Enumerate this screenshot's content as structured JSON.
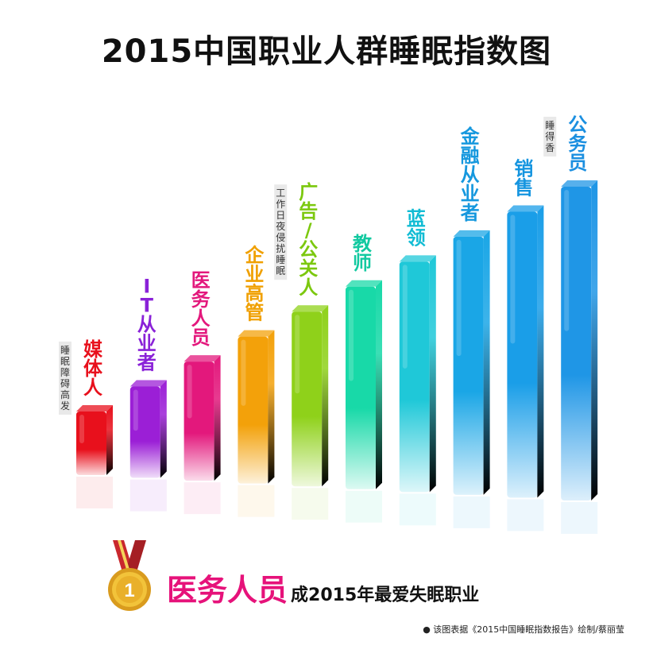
{
  "title": "2015中国职业人群睡眠指数图",
  "chart_data": {
    "type": "bar",
    "title": "2015中国职业人群睡眠指数图",
    "categories": [
      "媒体人",
      "IT从业者",
      "医务人员",
      "企业高管",
      "广告/公关人",
      "教师",
      "蓝领",
      "金融从业者",
      "销售",
      "公务员"
    ],
    "values": [
      1,
      2,
      3,
      4,
      5,
      6,
      7,
      8,
      9,
      10
    ],
    "colors": [
      "#e8101c",
      "#9b1fd6",
      "#e3187c",
      "#f3a10a",
      "#8fd11a",
      "#18d9a8",
      "#1fc8d8",
      "#1aa6e6",
      "#1a9ee8",
      "#1f96e6"
    ],
    "label_colors": [
      "#e8101c",
      "#8a22d8",
      "#e3187c",
      "#f0a000",
      "#7cc80e",
      "#12c9a0",
      "#12bcd4",
      "#1698de",
      "#1595e0",
      "#1b8fe0"
    ],
    "annotations": [
      {
        "category": "媒体人",
        "text": "睡眠障碍高发"
      },
      {
        "category": "广告/公关人",
        "text": "工作日夜侵扰睡眠"
      },
      {
        "category": "公务员",
        "text": "睡得香"
      }
    ],
    "grid": false,
    "legend": "none"
  },
  "footer": {
    "highlight": "医务人员",
    "tail": "成2015年最爱失眠职业",
    "source": "● 该图表据《2015中国睡眠指数报告》绘制/蔡丽莹",
    "medal_number": "1"
  }
}
